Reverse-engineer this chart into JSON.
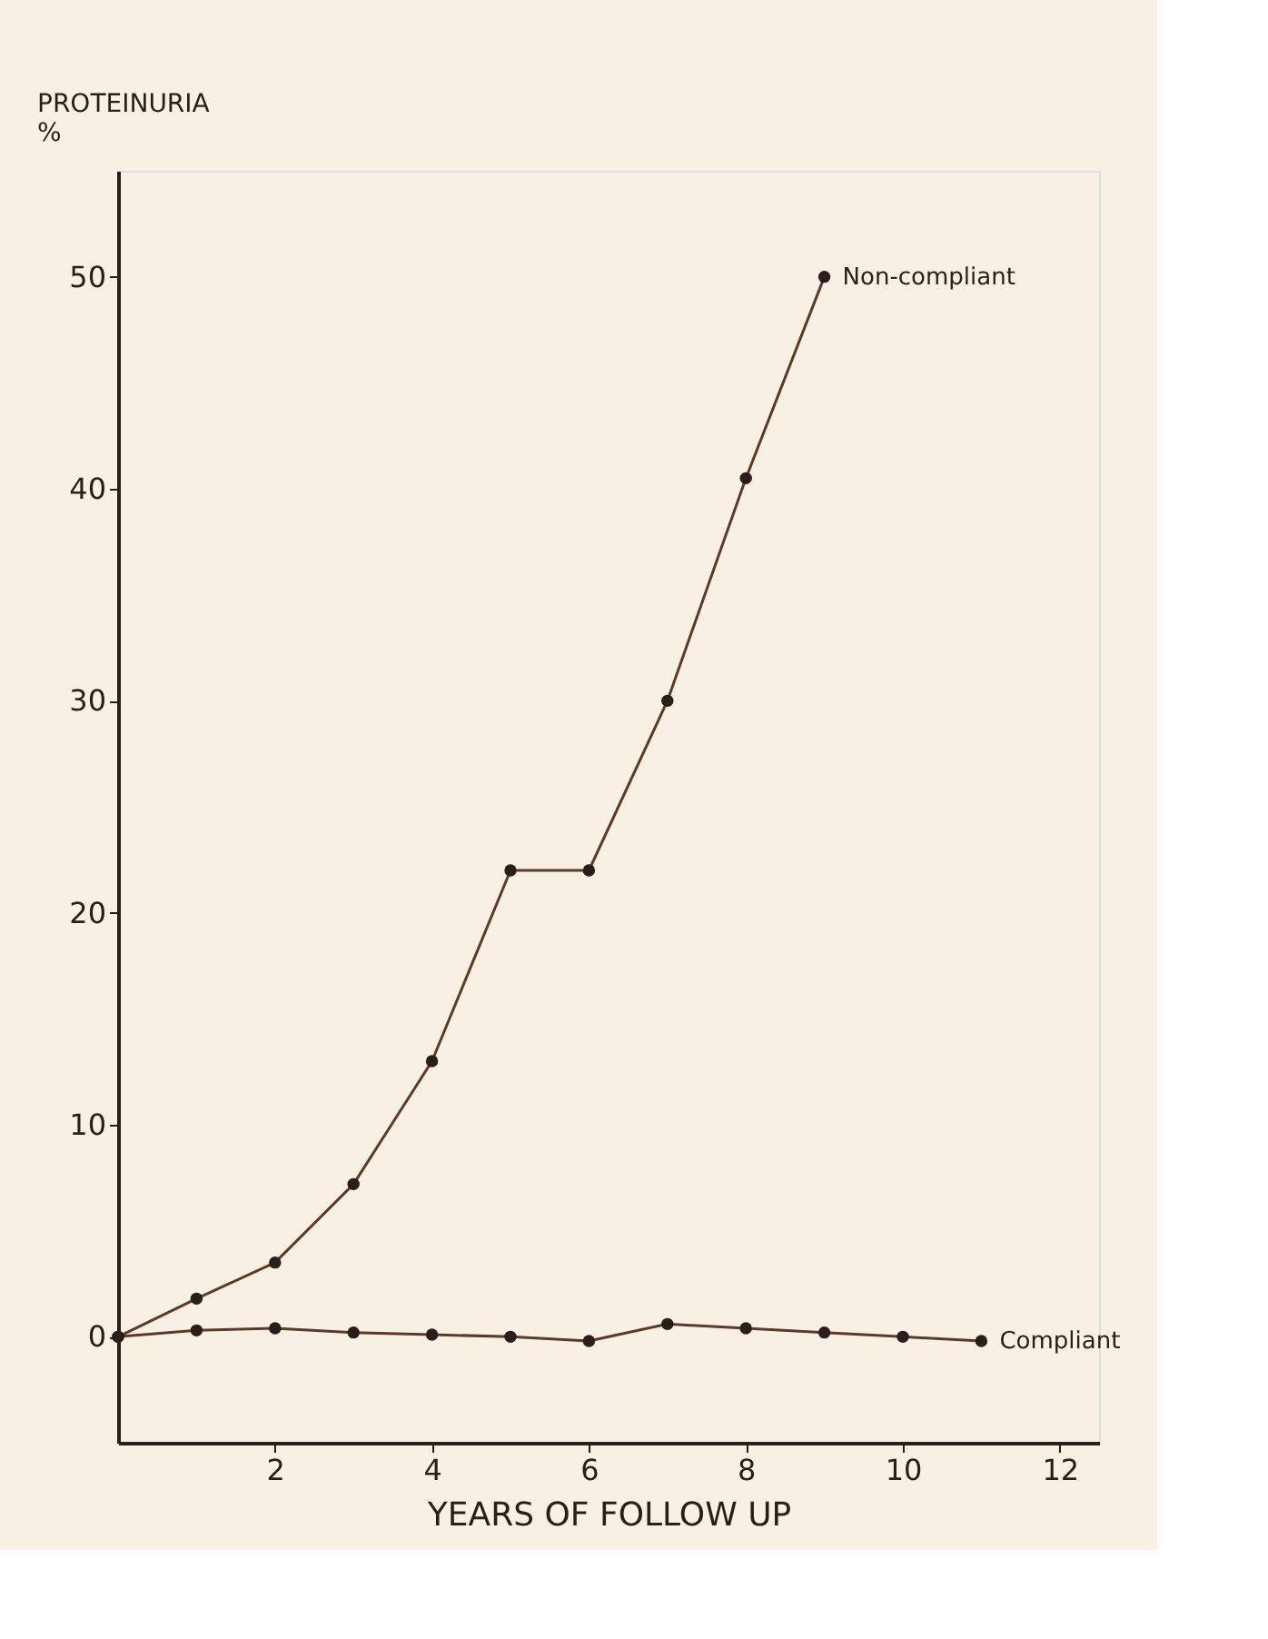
{
  "chart_data": {
    "type": "line",
    "ylabel": "PROTEINURIA\n%",
    "xlabel": "YEARS OF FOLLOW UP",
    "xlim": [
      0,
      12.5
    ],
    "xticks": [
      2,
      4,
      6,
      8,
      10,
      12
    ],
    "ylim": [
      -5,
      55
    ],
    "yticks": [
      0,
      10,
      20,
      30,
      40,
      50
    ],
    "grid": false,
    "legend": false,
    "marker": "circle",
    "line_style": "solid",
    "series": [
      {
        "name": "Non-compliant",
        "color": "#5a3a2a",
        "x": [
          0,
          1,
          2,
          3,
          4,
          5,
          6,
          7,
          8,
          9
        ],
        "values": [
          0,
          1.8,
          3.5,
          7.2,
          13,
          22,
          22,
          30,
          40.5,
          50
        ]
      },
      {
        "name": "Compliant",
        "color": "#5a3a2a",
        "x": [
          0,
          1,
          2,
          3,
          4,
          5,
          6,
          7,
          8,
          9,
          10,
          11
        ],
        "values": [
          0,
          0.3,
          0.4,
          0.2,
          0.1,
          0,
          -0.2,
          0.6,
          0.4,
          0.2,
          0,
          -0.2
        ]
      }
    ]
  }
}
